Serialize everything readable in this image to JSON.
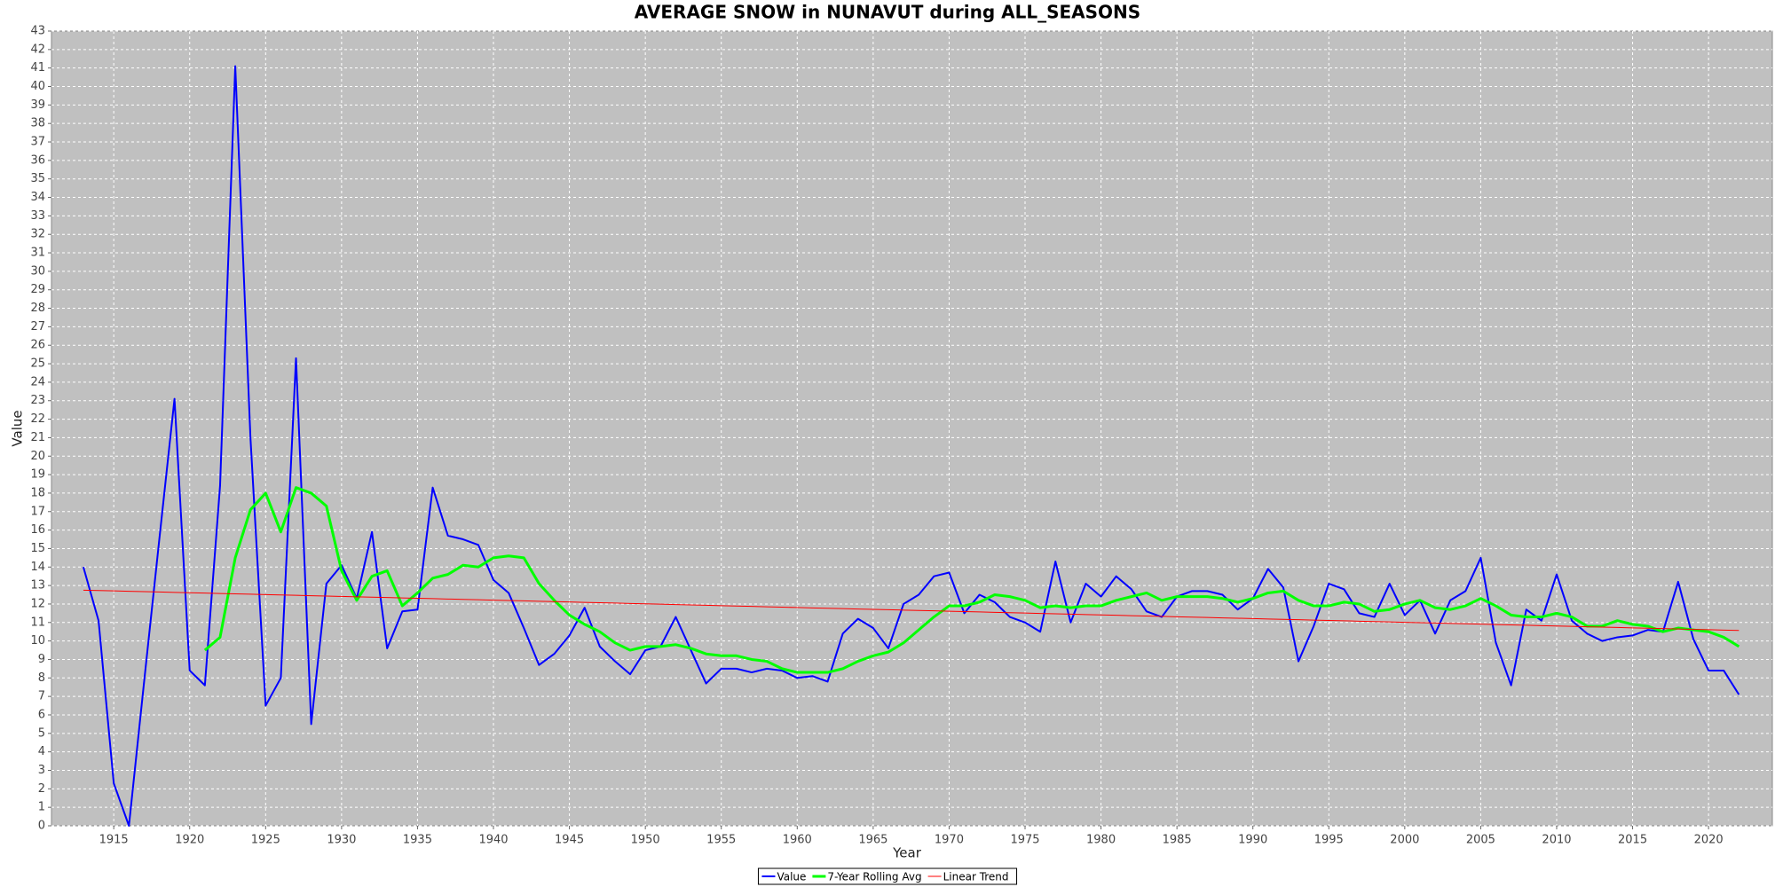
{
  "chart_data": {
    "type": "line",
    "title": "AVERAGE SNOW in NUNAVUT during ALL_SEASONS",
    "x_label": "Year",
    "y_label": "Value",
    "x": [
      1913,
      1914,
      1915,
      1916,
      1917,
      1918,
      1919,
      1920,
      1921,
      1922,
      1923,
      1924,
      1925,
      1926,
      1927,
      1928,
      1929,
      1930,
      1931,
      1932,
      1933,
      1934,
      1935,
      1936,
      1937,
      1938,
      1939,
      1940,
      1941,
      1942,
      1943,
      1944,
      1945,
      1946,
      1947,
      1948,
      1949,
      1950,
      1951,
      1952,
      1953,
      1954,
      1955,
      1956,
      1957,
      1958,
      1959,
      1960,
      1961,
      1962,
      1963,
      1964,
      1965,
      1966,
      1967,
      1968,
      1969,
      1970,
      1971,
      1972,
      1973,
      1974,
      1975,
      1976,
      1977,
      1978,
      1979,
      1980,
      1981,
      1982,
      1983,
      1984,
      1985,
      1986,
      1987,
      1988,
      1989,
      1990,
      1991,
      1992,
      1993,
      1994,
      1995,
      1996,
      1997,
      1998,
      1999,
      2000,
      2001,
      2002,
      2003,
      2004,
      2005,
      2006,
      2007,
      2008,
      2009,
      2010,
      2011,
      2012,
      2013,
      2014,
      2015,
      2016,
      2017,
      2018,
      2019,
      2020,
      2021,
      2022
    ],
    "series": [
      {
        "name": "Value",
        "color": "#0000ff",
        "width": 2,
        "values": [
          14.0,
          11.1,
          2.3,
          0.0,
          7.8,
          15.5,
          23.1,
          8.4,
          7.6,
          18.4,
          41.1,
          21.0,
          6.5,
          8.0,
          25.3,
          5.5,
          13.1,
          14.1,
          12.3,
          15.9,
          9.6,
          11.6,
          11.7,
          18.3,
          15.7,
          15.5,
          15.2,
          13.3,
          12.6,
          10.7,
          8.7,
          9.3,
          10.3,
          11.8,
          9.7,
          8.9,
          8.2,
          9.5,
          9.7,
          11.3,
          9.5,
          7.7,
          8.5,
          8.5,
          8.3,
          8.5,
          8.4,
          8.0,
          8.1,
          7.8,
          10.4,
          11.2,
          10.7,
          9.6,
          12.0,
          12.5,
          13.5,
          13.7,
          11.5,
          12.5,
          12.1,
          11.3,
          11.0,
          10.5,
          14.3,
          11.0,
          13.1,
          12.4,
          13.5,
          12.8,
          11.6,
          11.3,
          12.4,
          12.7,
          12.7,
          12.5,
          11.7,
          12.3,
          13.9,
          12.9,
          8.9,
          10.8,
          13.1,
          12.8,
          11.5,
          11.3,
          13.1,
          11.4,
          12.2,
          10.4,
          12.2,
          12.7,
          14.5,
          9.9,
          7.6,
          11.7,
          11.1,
          13.6,
          11.1,
          10.4,
          10.0,
          10.2,
          10.3,
          10.6,
          10.5,
          13.2,
          10.1,
          8.4,
          8.4,
          7.1
        ]
      },
      {
        "name": "7-Year Rolling Avg",
        "color": "#00ff00",
        "width": 3,
        "values": [
          null,
          null,
          null,
          null,
          null,
          null,
          null,
          null,
          9.5,
          10.2,
          14.5,
          17.1,
          18.0,
          15.9,
          18.3,
          18.0,
          17.3,
          13.8,
          12.2,
          13.5,
          13.8,
          11.9,
          12.6,
          13.4,
          13.6,
          14.1,
          14.0,
          14.5,
          14.6,
          14.5,
          13.1,
          12.2,
          11.4,
          10.9,
          10.5,
          9.9,
          9.5,
          9.7,
          9.7,
          9.8,
          9.6,
          9.3,
          9.2,
          9.2,
          9.0,
          8.9,
          8.5,
          8.3,
          8.3,
          8.3,
          8.5,
          8.9,
          9.2,
          9.4,
          9.9,
          10.6,
          11.3,
          11.9,
          11.9,
          12.1,
          12.5,
          12.4,
          12.2,
          11.8,
          11.9,
          11.8,
          11.9,
          11.9,
          12.2,
          12.4,
          12.6,
          12.2,
          12.4,
          12.4,
          12.4,
          12.3,
          12.1,
          12.3,
          12.6,
          12.7,
          12.2,
          11.9,
          11.9,
          12.1,
          12.0,
          11.6,
          11.7,
          12.0,
          12.2,
          11.8,
          11.7,
          11.9,
          12.3,
          11.9,
          11.4,
          11.3,
          11.3,
          11.5,
          11.3,
          10.8,
          10.8,
          11.1,
          10.9,
          10.8,
          10.5,
          10.7,
          10.6,
          10.5,
          10.2,
          9.7
        ]
      },
      {
        "name": "Linear Trend",
        "color": "#ff0000",
        "width": 1,
        "values": [
          12.75,
          12.73,
          12.71,
          12.69,
          12.67,
          12.65,
          12.63,
          12.61,
          12.59,
          12.57,
          12.55,
          12.53,
          12.51,
          12.49,
          12.47,
          12.45,
          12.43,
          12.41,
          12.39,
          12.37,
          12.35,
          12.33,
          12.31,
          12.29,
          12.27,
          12.25,
          12.23,
          12.21,
          12.19,
          12.17,
          12.15,
          12.13,
          12.11,
          12.09,
          12.07,
          12.05,
          12.03,
          12.01,
          11.99,
          11.97,
          11.95,
          11.93,
          11.91,
          11.89,
          11.87,
          11.85,
          11.83,
          11.81,
          11.79,
          11.77,
          11.75,
          11.73,
          11.71,
          11.69,
          11.67,
          11.65,
          11.63,
          11.61,
          11.59,
          11.57,
          11.55,
          11.53,
          11.51,
          11.49,
          11.47,
          11.45,
          11.43,
          11.41,
          11.39,
          11.37,
          11.35,
          11.33,
          11.31,
          11.29,
          11.27,
          11.25,
          11.23,
          11.21,
          11.19,
          11.17,
          11.15,
          11.13,
          11.11,
          11.09,
          11.07,
          11.05,
          11.03,
          11.01,
          10.99,
          10.97,
          10.95,
          10.93,
          10.91,
          10.89,
          10.87,
          10.85,
          10.83,
          10.81,
          10.79,
          10.77,
          10.75,
          10.73,
          10.71,
          10.69,
          10.67,
          10.65,
          10.63,
          10.61,
          10.59,
          10.57
        ]
      }
    ],
    "xlim": [
      1910.9,
      2024.2
    ],
    "xticks": [
      1915,
      1920,
      1925,
      1930,
      1935,
      1940,
      1945,
      1950,
      1955,
      1960,
      1965,
      1970,
      1975,
      1980,
      1985,
      1990,
      1995,
      2000,
      2005,
      2010,
      2015,
      2020
    ],
    "ylim": [
      0,
      43
    ],
    "yticks": [
      0,
      1,
      2,
      3,
      4,
      5,
      6,
      7,
      8,
      9,
      10,
      11,
      12,
      13,
      14,
      15,
      16,
      17,
      18,
      19,
      20,
      21,
      22,
      23,
      24,
      25,
      26,
      27,
      28,
      29,
      30,
      31,
      32,
      33,
      34,
      35,
      36,
      37,
      38,
      39,
      40,
      41,
      42,
      43
    ],
    "grid": true,
    "legend": "bottom"
  }
}
